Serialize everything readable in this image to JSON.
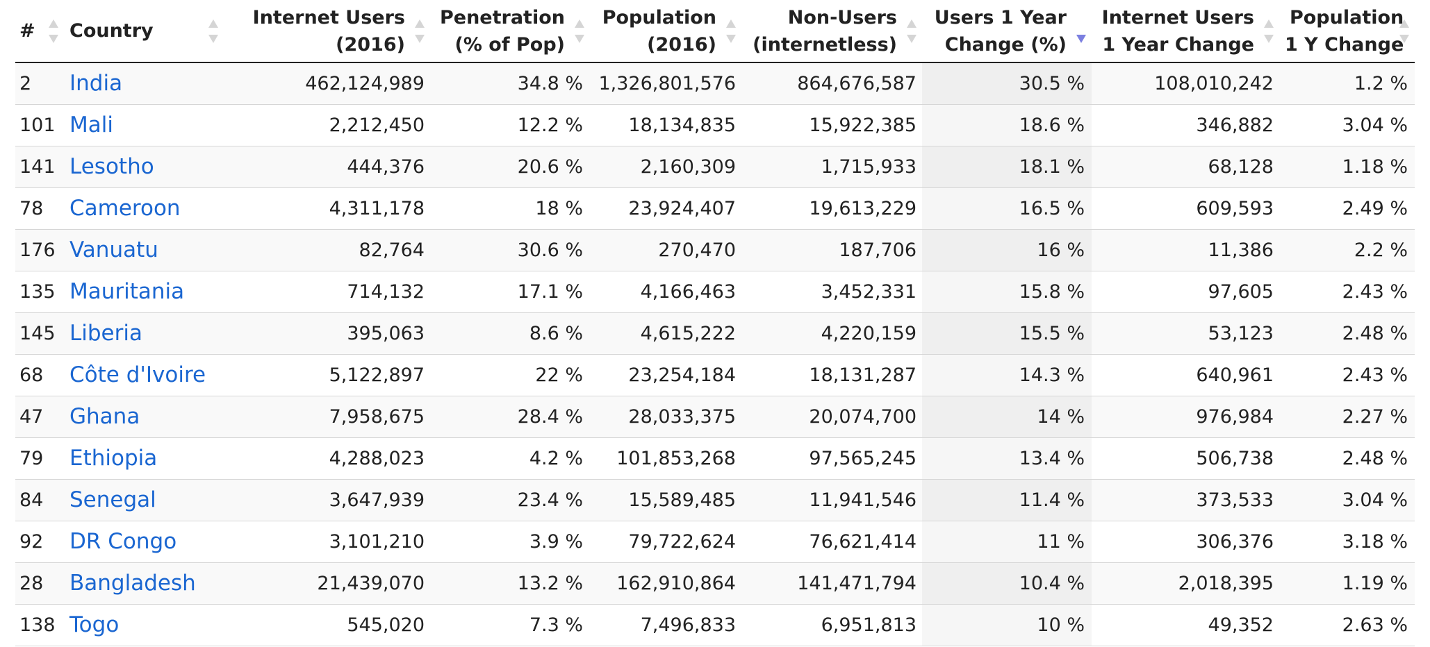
{
  "table": {
    "sorted_column": "users_change",
    "sort_direction": "descending",
    "headers": {
      "rank": "#",
      "country": "Country",
      "internet_users": [
        "Internet Users",
        "(2016)"
      ],
      "penetration": [
        "Penetration",
        "(% of Pop)"
      ],
      "population": [
        "Population",
        "(2016)"
      ],
      "non_users": [
        "Non-Users",
        "(internetless)"
      ],
      "users_change": [
        "Users 1 Year",
        "Change (%)"
      ],
      "users_change_abs": [
        "Internet Users",
        "1 Year Change"
      ],
      "population_change": [
        "Population",
        "1 Y Change"
      ]
    },
    "rows": [
      {
        "rank": "2",
        "country": "India",
        "internet_users": "462,124,989",
        "penetration": "34.8 %",
        "population": "1,326,801,576",
        "non_users": "864,676,587",
        "users_change": "30.5 %",
        "users_change_abs": "108,010,242",
        "population_change": "1.2 %"
      },
      {
        "rank": "101",
        "country": "Mali",
        "internet_users": "2,212,450",
        "penetration": "12.2 %",
        "population": "18,134,835",
        "non_users": "15,922,385",
        "users_change": "18.6 %",
        "users_change_abs": "346,882",
        "population_change": "3.04 %"
      },
      {
        "rank": "141",
        "country": "Lesotho",
        "internet_users": "444,376",
        "penetration": "20.6 %",
        "population": "2,160,309",
        "non_users": "1,715,933",
        "users_change": "18.1 %",
        "users_change_abs": "68,128",
        "population_change": "1.18 %"
      },
      {
        "rank": "78",
        "country": "Cameroon",
        "internet_users": "4,311,178",
        "penetration": "18 %",
        "population": "23,924,407",
        "non_users": "19,613,229",
        "users_change": "16.5 %",
        "users_change_abs": "609,593",
        "population_change": "2.49 %"
      },
      {
        "rank": "176",
        "country": "Vanuatu",
        "internet_users": "82,764",
        "penetration": "30.6 %",
        "population": "270,470",
        "non_users": "187,706",
        "users_change": "16 %",
        "users_change_abs": "11,386",
        "population_change": "2.2 %"
      },
      {
        "rank": "135",
        "country": "Mauritania",
        "internet_users": "714,132",
        "penetration": "17.1 %",
        "population": "4,166,463",
        "non_users": "3,452,331",
        "users_change": "15.8 %",
        "users_change_abs": "97,605",
        "population_change": "2.43 %"
      },
      {
        "rank": "145",
        "country": "Liberia",
        "internet_users": "395,063",
        "penetration": "8.6 %",
        "population": "4,615,222",
        "non_users": "4,220,159",
        "users_change": "15.5 %",
        "users_change_abs": "53,123",
        "population_change": "2.48 %"
      },
      {
        "rank": "68",
        "country": "Côte d'Ivoire",
        "internet_users": "5,122,897",
        "penetration": "22 %",
        "population": "23,254,184",
        "non_users": "18,131,287",
        "users_change": "14.3 %",
        "users_change_abs": "640,961",
        "population_change": "2.43 %"
      },
      {
        "rank": "47",
        "country": "Ghana",
        "internet_users": "7,958,675",
        "penetration": "28.4 %",
        "population": "28,033,375",
        "non_users": "20,074,700",
        "users_change": "14 %",
        "users_change_abs": "976,984",
        "population_change": "2.27 %"
      },
      {
        "rank": "79",
        "country": "Ethiopia",
        "internet_users": "4,288,023",
        "penetration": "4.2 %",
        "population": "101,853,268",
        "non_users": "97,565,245",
        "users_change": "13.4 %",
        "users_change_abs": "506,738",
        "population_change": "2.48 %"
      },
      {
        "rank": "84",
        "country": "Senegal",
        "internet_users": "3,647,939",
        "penetration": "23.4 %",
        "population": "15,589,485",
        "non_users": "11,941,546",
        "users_change": "11.4 %",
        "users_change_abs": "373,533",
        "population_change": "3.04 %"
      },
      {
        "rank": "92",
        "country": "DR Congo",
        "internet_users": "3,101,210",
        "penetration": "3.9 %",
        "population": "79,722,624",
        "non_users": "76,621,414",
        "users_change": "11 %",
        "users_change_abs": "306,376",
        "population_change": "3.18 %"
      },
      {
        "rank": "28",
        "country": "Bangladesh",
        "internet_users": "21,439,070",
        "penetration": "13.2 %",
        "population": "162,910,864",
        "non_users": "141,471,794",
        "users_change": "10.4 %",
        "users_change_abs": "2,018,395",
        "population_change": "1.19 %"
      },
      {
        "rank": "138",
        "country": "Togo",
        "internet_users": "545,020",
        "penetration": "7.3 %",
        "population": "7,496,833",
        "non_users": "6,951,813",
        "users_change": "10 %",
        "users_change_abs": "49,352",
        "population_change": "2.63 %"
      }
    ]
  },
  "colors": {
    "link": "#1a66d1",
    "sort_active": "#7b7fe0",
    "sort_inactive": "#d5d5d5"
  },
  "icons": {
    "sort": "sort-arrows-icon",
    "sort_active": "sort-descending-icon"
  }
}
